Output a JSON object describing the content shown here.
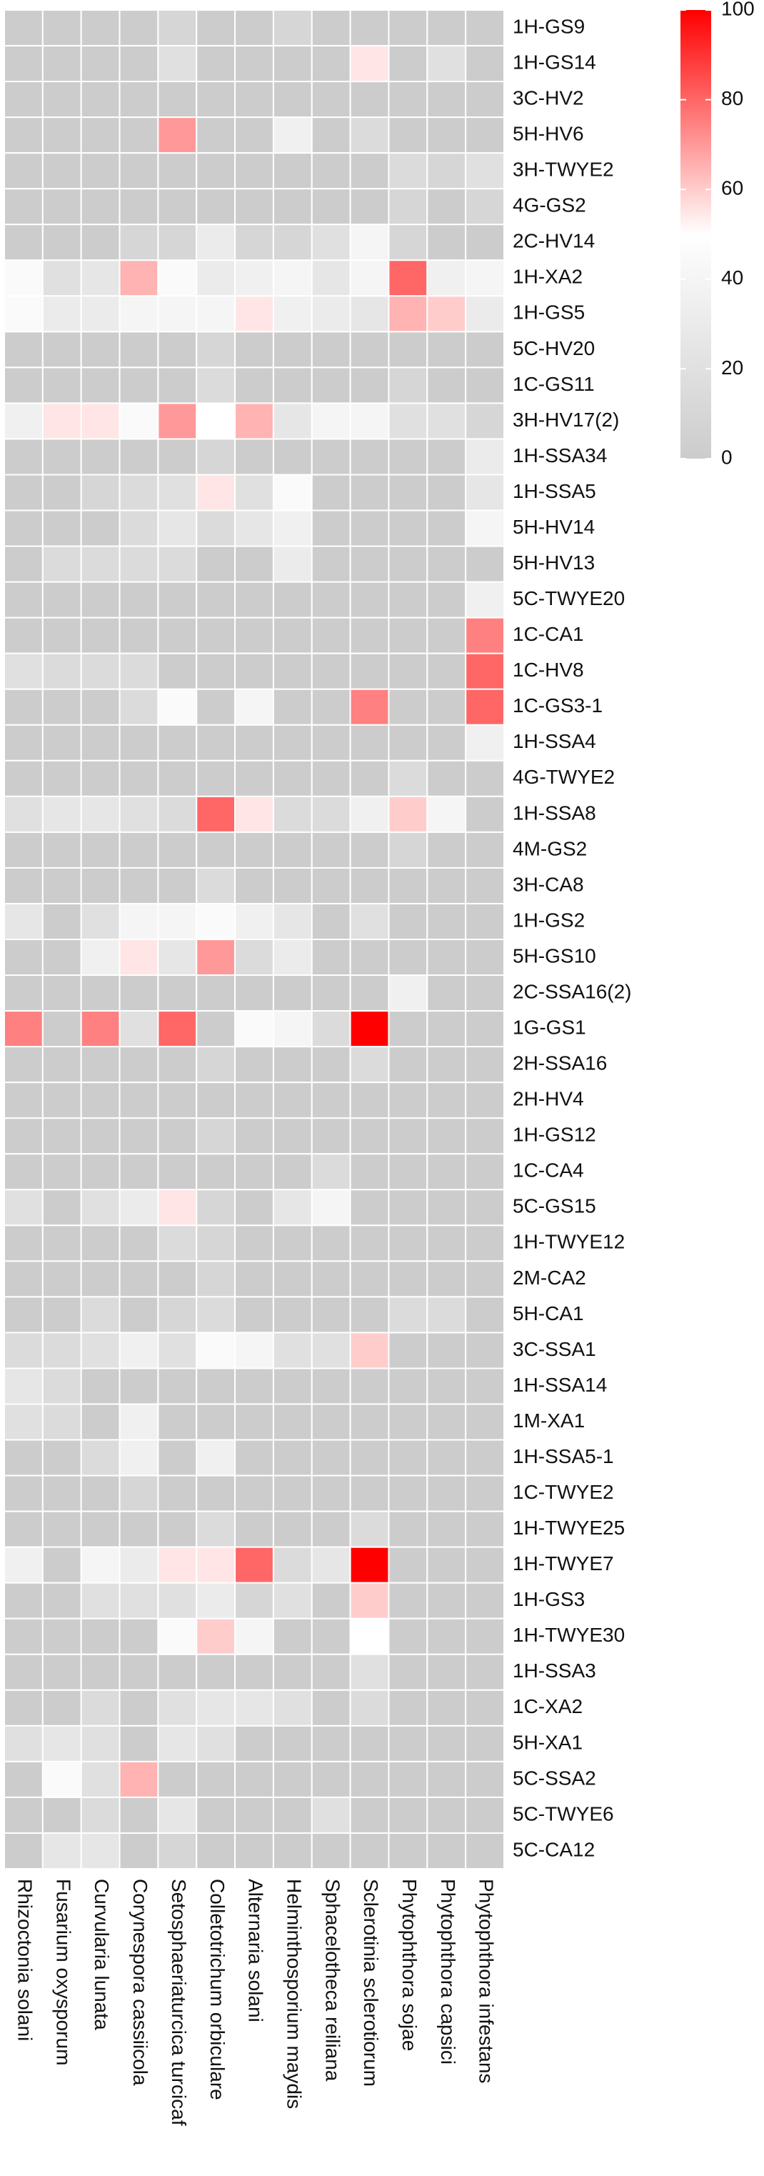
{
  "chart_data": {
    "type": "heatmap",
    "columns": [
      "Rhizoctonia solani",
      "Fusarium oxysporum",
      "Curvularia lunata",
      "Corynespora cassiicola",
      "Setosphaeriaturcica turcicaf",
      "Colletotrichum orbiculare",
      "Alternaria solani",
      "Helminthosporium maydis",
      "Sphacelotheca reiliana",
      "Sclerotinia sclerotiorum",
      "Phytophthora sojae",
      "Phytophthora capsici",
      "Phytophthora infestans"
    ],
    "rows": [
      "1H-GS9",
      "1H-GS14",
      "3C-HV2",
      "5H-HV6",
      "3H-TWYE2",
      "4G-GS2",
      "2C-HV14",
      "1H-XA2",
      "1H-GS5",
      "5C-HV20",
      "1C-GS11",
      "3H-HV17(2)",
      "1H-SSA34",
      "1H-SSA5",
      "5H-HV14",
      "5H-HV13",
      "5C-TWYE20",
      "1C-CA1",
      "1C-HV8",
      "1C-GS3-1",
      "1H-SSA4",
      "4G-TWYE2",
      "1H-SSA8",
      "4M-GS2",
      "3H-CA8",
      "1H-GS2",
      "5H-GS10",
      "2C-SSA16(2)",
      "1G-GS1",
      "2H-SSA16",
      "2H-HV4",
      "1H-GS12",
      "1C-CA4",
      "5C-GS15",
      "1H-TWYE12",
      "2M-CA2",
      "5H-CA1",
      "3C-SSA1",
      "1H-SSA14",
      "1M-XA1",
      "1H-SSA5-1",
      "1C-TWYE2",
      "1H-TWYE25",
      "1H-TWYE7",
      "1H-GS3",
      "1H-TWYE30",
      "1H-SSA3",
      "1C-XA2",
      "5H-XA1",
      "5C-SSA2",
      "5C-TWYE6",
      "5C-CA12"
    ],
    "values": [
      [
        0,
        0,
        0,
        0,
        10,
        0,
        0,
        10,
        0,
        0,
        0,
        0,
        0
      ],
      [
        0,
        0,
        0,
        0,
        20,
        0,
        0,
        0,
        0,
        55,
        0,
        20,
        0
      ],
      [
        0,
        0,
        0,
        0,
        0,
        0,
        0,
        0,
        0,
        0,
        0,
        0,
        0
      ],
      [
        0,
        0,
        0,
        0,
        70,
        0,
        0,
        35,
        0,
        15,
        0,
        0,
        0
      ],
      [
        0,
        0,
        0,
        0,
        0,
        0,
        0,
        0,
        0,
        0,
        15,
        10,
        20
      ],
      [
        0,
        0,
        0,
        0,
        0,
        0,
        0,
        0,
        0,
        0,
        10,
        0,
        10
      ],
      [
        0,
        0,
        0,
        10,
        10,
        30,
        10,
        10,
        20,
        40,
        10,
        0,
        0
      ],
      [
        45,
        20,
        25,
        65,
        45,
        30,
        35,
        40,
        25,
        40,
        80,
        35,
        40
      ],
      [
        45,
        30,
        30,
        40,
        40,
        40,
        55,
        35,
        30,
        25,
        65,
        60,
        30
      ],
      [
        0,
        0,
        0,
        0,
        0,
        10,
        0,
        0,
        0,
        0,
        0,
        0,
        0
      ],
      [
        0,
        0,
        0,
        0,
        0,
        15,
        0,
        0,
        0,
        0,
        10,
        0,
        0
      ],
      [
        35,
        55,
        55,
        45,
        70,
        50,
        65,
        25,
        40,
        40,
        20,
        20,
        10
      ],
      [
        0,
        0,
        0,
        0,
        0,
        10,
        0,
        0,
        0,
        0,
        0,
        0,
        30
      ],
      [
        0,
        0,
        10,
        15,
        20,
        55,
        20,
        45,
        0,
        0,
        0,
        0,
        25
      ],
      [
        0,
        0,
        0,
        15,
        25,
        15,
        25,
        35,
        0,
        0,
        0,
        0,
        40
      ],
      [
        0,
        15,
        15,
        15,
        15,
        0,
        0,
        30,
        0,
        0,
        0,
        0,
        0
      ],
      [
        0,
        0,
        0,
        0,
        0,
        0,
        0,
        0,
        0,
        0,
        0,
        0,
        35
      ],
      [
        0,
        0,
        0,
        0,
        0,
        0,
        0,
        0,
        0,
        0,
        0,
        0,
        75
      ],
      [
        20,
        15,
        15,
        15,
        0,
        0,
        0,
        0,
        0,
        0,
        0,
        0,
        80
      ],
      [
        0,
        0,
        0,
        15,
        45,
        0,
        40,
        0,
        0,
        75,
        0,
        0,
        80
      ],
      [
        0,
        0,
        0,
        0,
        0,
        0,
        0,
        0,
        0,
        0,
        0,
        0,
        35
      ],
      [
        0,
        0,
        0,
        0,
        0,
        0,
        0,
        0,
        0,
        0,
        15,
        0,
        0
      ],
      [
        20,
        25,
        25,
        20,
        15,
        80,
        55,
        15,
        15,
        35,
        60,
        40,
        0
      ],
      [
        0,
        0,
        0,
        0,
        0,
        0,
        0,
        0,
        0,
        0,
        10,
        0,
        0
      ],
      [
        0,
        0,
        0,
        0,
        0,
        15,
        0,
        0,
        0,
        0,
        0,
        0,
        0
      ],
      [
        25,
        0,
        20,
        40,
        40,
        45,
        35,
        25,
        0,
        20,
        0,
        0,
        0
      ],
      [
        0,
        0,
        35,
        55,
        25,
        70,
        15,
        30,
        0,
        0,
        0,
        0,
        0
      ],
      [
        0,
        0,
        0,
        0,
        0,
        0,
        0,
        0,
        0,
        0,
        35,
        0,
        0
      ],
      [
        75,
        0,
        75,
        20,
        80,
        0,
        45,
        40,
        15,
        100,
        0,
        0,
        0
      ],
      [
        0,
        0,
        0,
        0,
        0,
        10,
        0,
        0,
        0,
        15,
        0,
        0,
        0
      ],
      [
        0,
        0,
        0,
        0,
        0,
        0,
        0,
        0,
        0,
        0,
        0,
        0,
        0
      ],
      [
        0,
        0,
        0,
        0,
        0,
        10,
        0,
        0,
        0,
        0,
        0,
        0,
        0
      ],
      [
        0,
        0,
        0,
        0,
        0,
        0,
        0,
        0,
        15,
        0,
        0,
        0,
        0
      ],
      [
        20,
        0,
        20,
        30,
        55,
        10,
        0,
        25,
        40,
        0,
        0,
        0,
        0
      ],
      [
        0,
        0,
        0,
        0,
        15,
        10,
        0,
        0,
        0,
        0,
        0,
        0,
        0
      ],
      [
        0,
        0,
        0,
        0,
        0,
        10,
        0,
        0,
        0,
        0,
        0,
        0,
        0
      ],
      [
        0,
        0,
        15,
        0,
        10,
        15,
        0,
        0,
        0,
        0,
        15,
        15,
        0
      ],
      [
        15,
        15,
        20,
        35,
        20,
        45,
        40,
        20,
        20,
        60,
        0,
        0,
        0
      ],
      [
        25,
        15,
        0,
        0,
        0,
        0,
        0,
        0,
        0,
        0,
        0,
        0,
        0
      ],
      [
        20,
        15,
        0,
        35,
        0,
        0,
        0,
        0,
        0,
        0,
        0,
        0,
        0
      ],
      [
        0,
        0,
        15,
        35,
        0,
        35,
        0,
        0,
        0,
        0,
        0,
        0,
        0
      ],
      [
        0,
        0,
        0,
        10,
        0,
        0,
        0,
        0,
        0,
        0,
        0,
        0,
        0
      ],
      [
        0,
        0,
        0,
        0,
        0,
        15,
        0,
        0,
        0,
        15,
        0,
        0,
        0
      ],
      [
        35,
        0,
        40,
        30,
        55,
        55,
        80,
        15,
        25,
        100,
        0,
        0,
        0
      ],
      [
        0,
        0,
        20,
        20,
        20,
        30,
        10,
        20,
        0,
        60,
        0,
        0,
        0
      ],
      [
        0,
        0,
        0,
        0,
        45,
        60,
        40,
        0,
        0,
        50,
        0,
        0,
        0
      ],
      [
        0,
        0,
        0,
        0,
        0,
        0,
        0,
        0,
        0,
        20,
        0,
        0,
        0
      ],
      [
        0,
        0,
        15,
        0,
        20,
        25,
        25,
        20,
        0,
        15,
        0,
        0,
        0
      ],
      [
        20,
        25,
        20,
        0,
        25,
        20,
        0,
        0,
        0,
        0,
        0,
        0,
        0
      ],
      [
        0,
        45,
        20,
        65,
        0,
        0,
        0,
        0,
        0,
        0,
        0,
        0,
        0
      ],
      [
        0,
        0,
        15,
        0,
        25,
        0,
        0,
        0,
        20,
        0,
        0,
        0,
        0
      ],
      [
        0,
        25,
        25,
        0,
        10,
        0,
        0,
        0,
        0,
        0,
        0,
        0,
        0
      ]
    ],
    "colors": [
      "#cccccc",
      "#ffffff",
      "#ff0000"
    ],
    "zlim": [
      0,
      100
    ],
    "zticks": [
      0,
      20,
      40,
      60,
      80,
      100
    ]
  }
}
